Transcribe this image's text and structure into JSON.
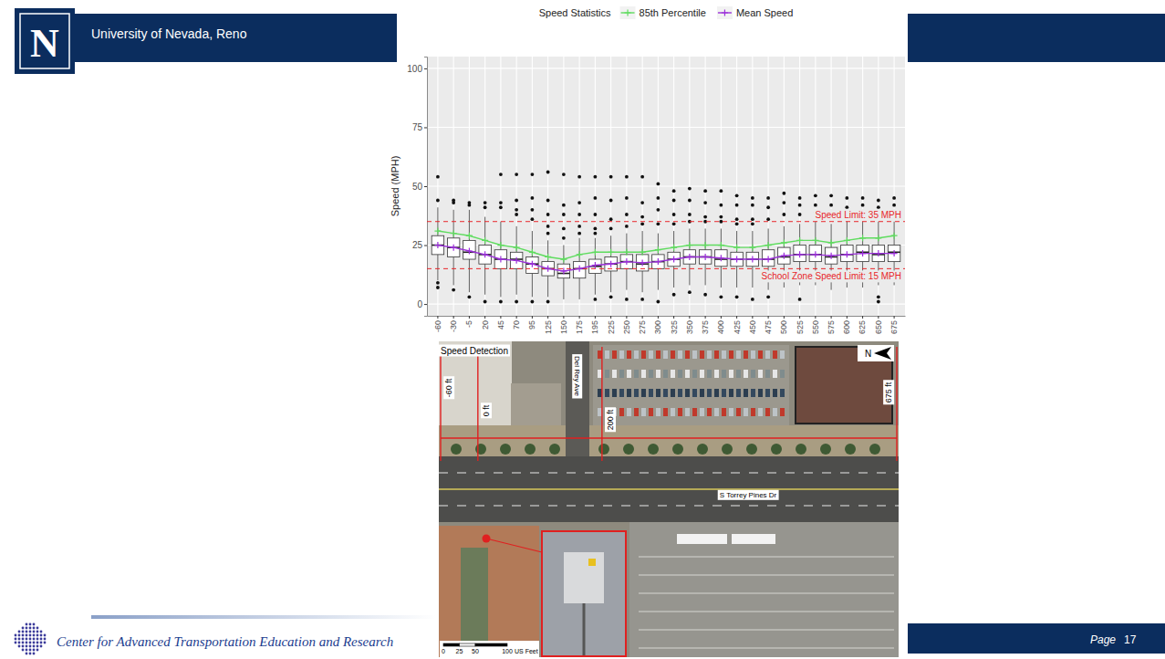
{
  "chart_data": {
    "type": "box",
    "legend_title": "Speed Statistics",
    "y_label": "Speed (MPH)",
    "legend": "top",
    "grid": true,
    "ylim": [
      -5,
      105
    ],
    "yticks": [
      0,
      25,
      50,
      75,
      100
    ],
    "categories": [
      "-60",
      "-30",
      "-5",
      "20",
      "45",
      "70",
      "95",
      "125",
      "150",
      "175",
      "195",
      "225",
      "250",
      "275",
      "300",
      "325",
      "350",
      "375",
      "400",
      "425",
      "450",
      "475",
      "500",
      "525",
      "550",
      "575",
      "600",
      "625",
      "650",
      "675"
    ],
    "boxes": {
      "q1": [
        21,
        20,
        19,
        17,
        15,
        15,
        13,
        12,
        11,
        11,
        13,
        14,
        15,
        14,
        15,
        16,
        17,
        17,
        16,
        16,
        16,
        16,
        17,
        18,
        18,
        17,
        18,
        18,
        18,
        18
      ],
      "median": [
        25,
        24,
        22,
        21,
        19,
        19,
        17,
        15,
        13,
        15,
        16,
        17,
        18,
        17,
        18,
        19,
        20,
        20,
        19,
        19,
        19,
        19,
        20,
        21,
        21,
        20,
        21,
        22,
        21,
        22
      ],
      "q3": [
        29,
        28,
        27,
        25,
        23,
        22,
        20,
        18,
        17,
        18,
        19,
        20,
        21,
        21,
        21,
        22,
        23,
        23,
        23,
        22,
        22,
        23,
        24,
        25,
        25,
        24,
        25,
        25,
        25,
        25
      ],
      "whisker_low": [
        10,
        8,
        5,
        4,
        3,
        4,
        3,
        3,
        2,
        2,
        4,
        5,
        6,
        5,
        6,
        7,
        8,
        8,
        7,
        7,
        7,
        6,
        7,
        8,
        8,
        6,
        7,
        7,
        8,
        8
      ],
      "whisker_high": [
        41,
        40,
        40,
        37,
        35,
        33,
        31,
        27,
        25,
        28,
        28,
        29,
        30,
        31,
        30,
        31,
        32,
        32,
        32,
        31,
        31,
        32,
        33,
        34,
        35,
        34,
        35,
        35,
        35,
        35
      ],
      "outliers": [
        [
          54,
          44,
          9,
          7
        ],
        [
          44,
          43,
          6
        ],
        [
          43,
          42,
          3
        ],
        [
          43,
          41,
          1
        ],
        [
          55,
          43,
          41,
          1
        ],
        [
          55,
          44,
          40,
          38,
          1
        ],
        [
          55,
          45,
          40,
          36,
          1
        ],
        [
          56,
          44,
          38,
          33,
          30,
          1
        ],
        [
          55,
          42,
          38,
          32,
          28
        ],
        [
          54,
          43,
          38,
          33,
          30
        ],
        [
          54,
          45,
          38,
          32,
          30,
          2
        ],
        [
          54,
          44,
          36,
          32,
          3
        ],
        [
          54,
          45,
          38,
          33,
          2
        ],
        [
          54,
          43,
          37,
          34,
          2
        ],
        [
          51,
          45,
          40,
          34,
          1
        ],
        [
          48,
          44,
          38,
          34,
          4
        ],
        [
          49,
          44,
          38,
          35,
          5
        ],
        [
          48,
          43,
          37,
          35,
          4
        ],
        [
          48,
          42,
          37,
          35,
          3
        ],
        [
          46,
          42,
          36,
          34,
          3
        ],
        [
          45,
          42,
          36,
          34,
          2
        ],
        [
          45,
          41,
          36,
          3
        ],
        [
          47,
          43,
          38
        ],
        [
          45,
          42,
          38,
          2
        ],
        [
          46,
          42,
          39
        ],
        [
          46,
          42,
          38
        ],
        [
          45,
          41,
          38
        ],
        [
          45,
          42,
          39
        ],
        [
          44,
          41,
          38,
          3,
          1
        ],
        [
          45,
          42,
          38
        ]
      ]
    },
    "series": [
      {
        "name": "85th Percentile",
        "color": "#5fdc5f",
        "marker": "cross",
        "line_style": "solid",
        "values": [
          31,
          30,
          29,
          27,
          25,
          24,
          22,
          20,
          19,
          21,
          22,
          22,
          22,
          22,
          23,
          24,
          25,
          25,
          25,
          24,
          24,
          25,
          26,
          27,
          27,
          26,
          27,
          28,
          28,
          29
        ]
      },
      {
        "name": "Mean Speed",
        "color": "#9b30d9",
        "marker": "cross",
        "line_style": "solid",
        "values": [
          25,
          24,
          22.5,
          21,
          19,
          18.5,
          17,
          15,
          14,
          15,
          16.5,
          17,
          18,
          17.5,
          18,
          19,
          20,
          20,
          19.5,
          19,
          19,
          19,
          20.5,
          21,
          21,
          20.5,
          21,
          21.5,
          21.5,
          21.5
        ]
      }
    ],
    "reference_lines": [
      {
        "value": 35,
        "label": "Speed Limit: 35 MPH",
        "color": "#e8262a",
        "line_style": "dashed"
      },
      {
        "value": 15,
        "label": "School Zone Speed Limit: 15 MPH",
        "color": "#e8262a",
        "line_style": "dashed"
      }
    ]
  },
  "map": {
    "label": "Speed Detection",
    "markers": [
      {
        "value": -60,
        "label": "-60 ft"
      },
      {
        "value": 0,
        "label": "0 ft"
      },
      {
        "value": 200,
        "label": "200 ft"
      },
      {
        "value": 675,
        "label": "675 ft"
      }
    ],
    "streets": [
      "Del Rey Ave",
      "S Torrey Pines Dr"
    ],
    "north": "N",
    "scale_bar": {
      "ticks": [
        0,
        25,
        50,
        100
      ],
      "unit": "US Feet"
    }
  },
  "slide": {
    "logo_text": "N",
    "header": "University of Nevada, Reno",
    "footer": "Center for Advanced Transportation Education and Research",
    "page_label": "Page",
    "page_number": 17
  }
}
